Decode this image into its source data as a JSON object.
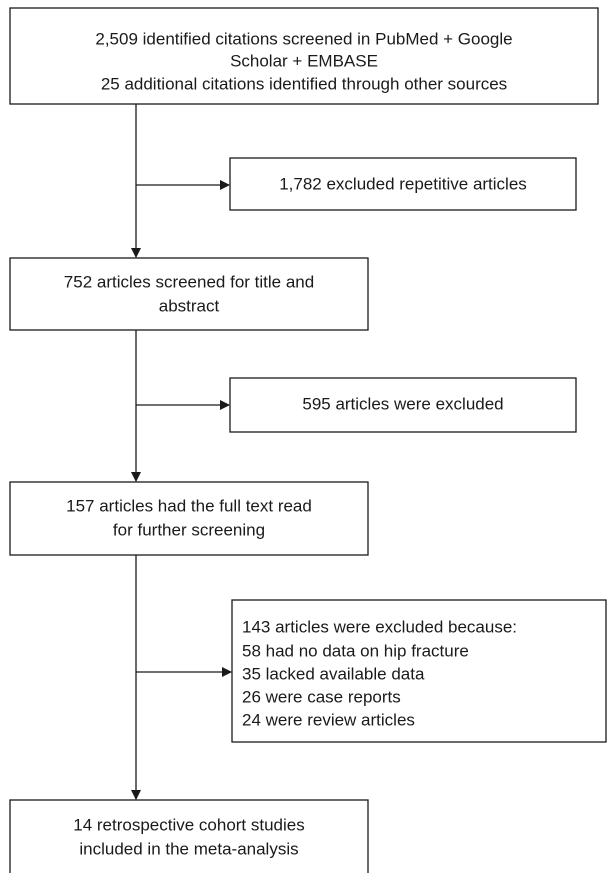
{
  "nodes": [
    {
      "lines": [
        "2,509 identified citations screened in PubMed + Google",
        "Scholar + EMBASE",
        "25 additional citations identified through other sources"
      ]
    },
    {
      "lines": [
        "1,782 excluded repetitive articles"
      ]
    },
    {
      "lines": [
        "752 articles screened for title and",
        "abstract"
      ]
    },
    {
      "lines": [
        "595 articles were excluded"
      ]
    },
    {
      "lines": [
        "157 articles had the full text read",
        "for further screening"
      ]
    },
    {
      "lines": [
        "143 articles were excluded because:",
        "58 had no data on hip fracture",
        "35 lacked available data",
        "26 were case reports",
        "24 were review articles"
      ]
    },
    {
      "lines": [
        "14 retrospective cohort studies",
        "included in the meta-analysis"
      ]
    }
  ]
}
